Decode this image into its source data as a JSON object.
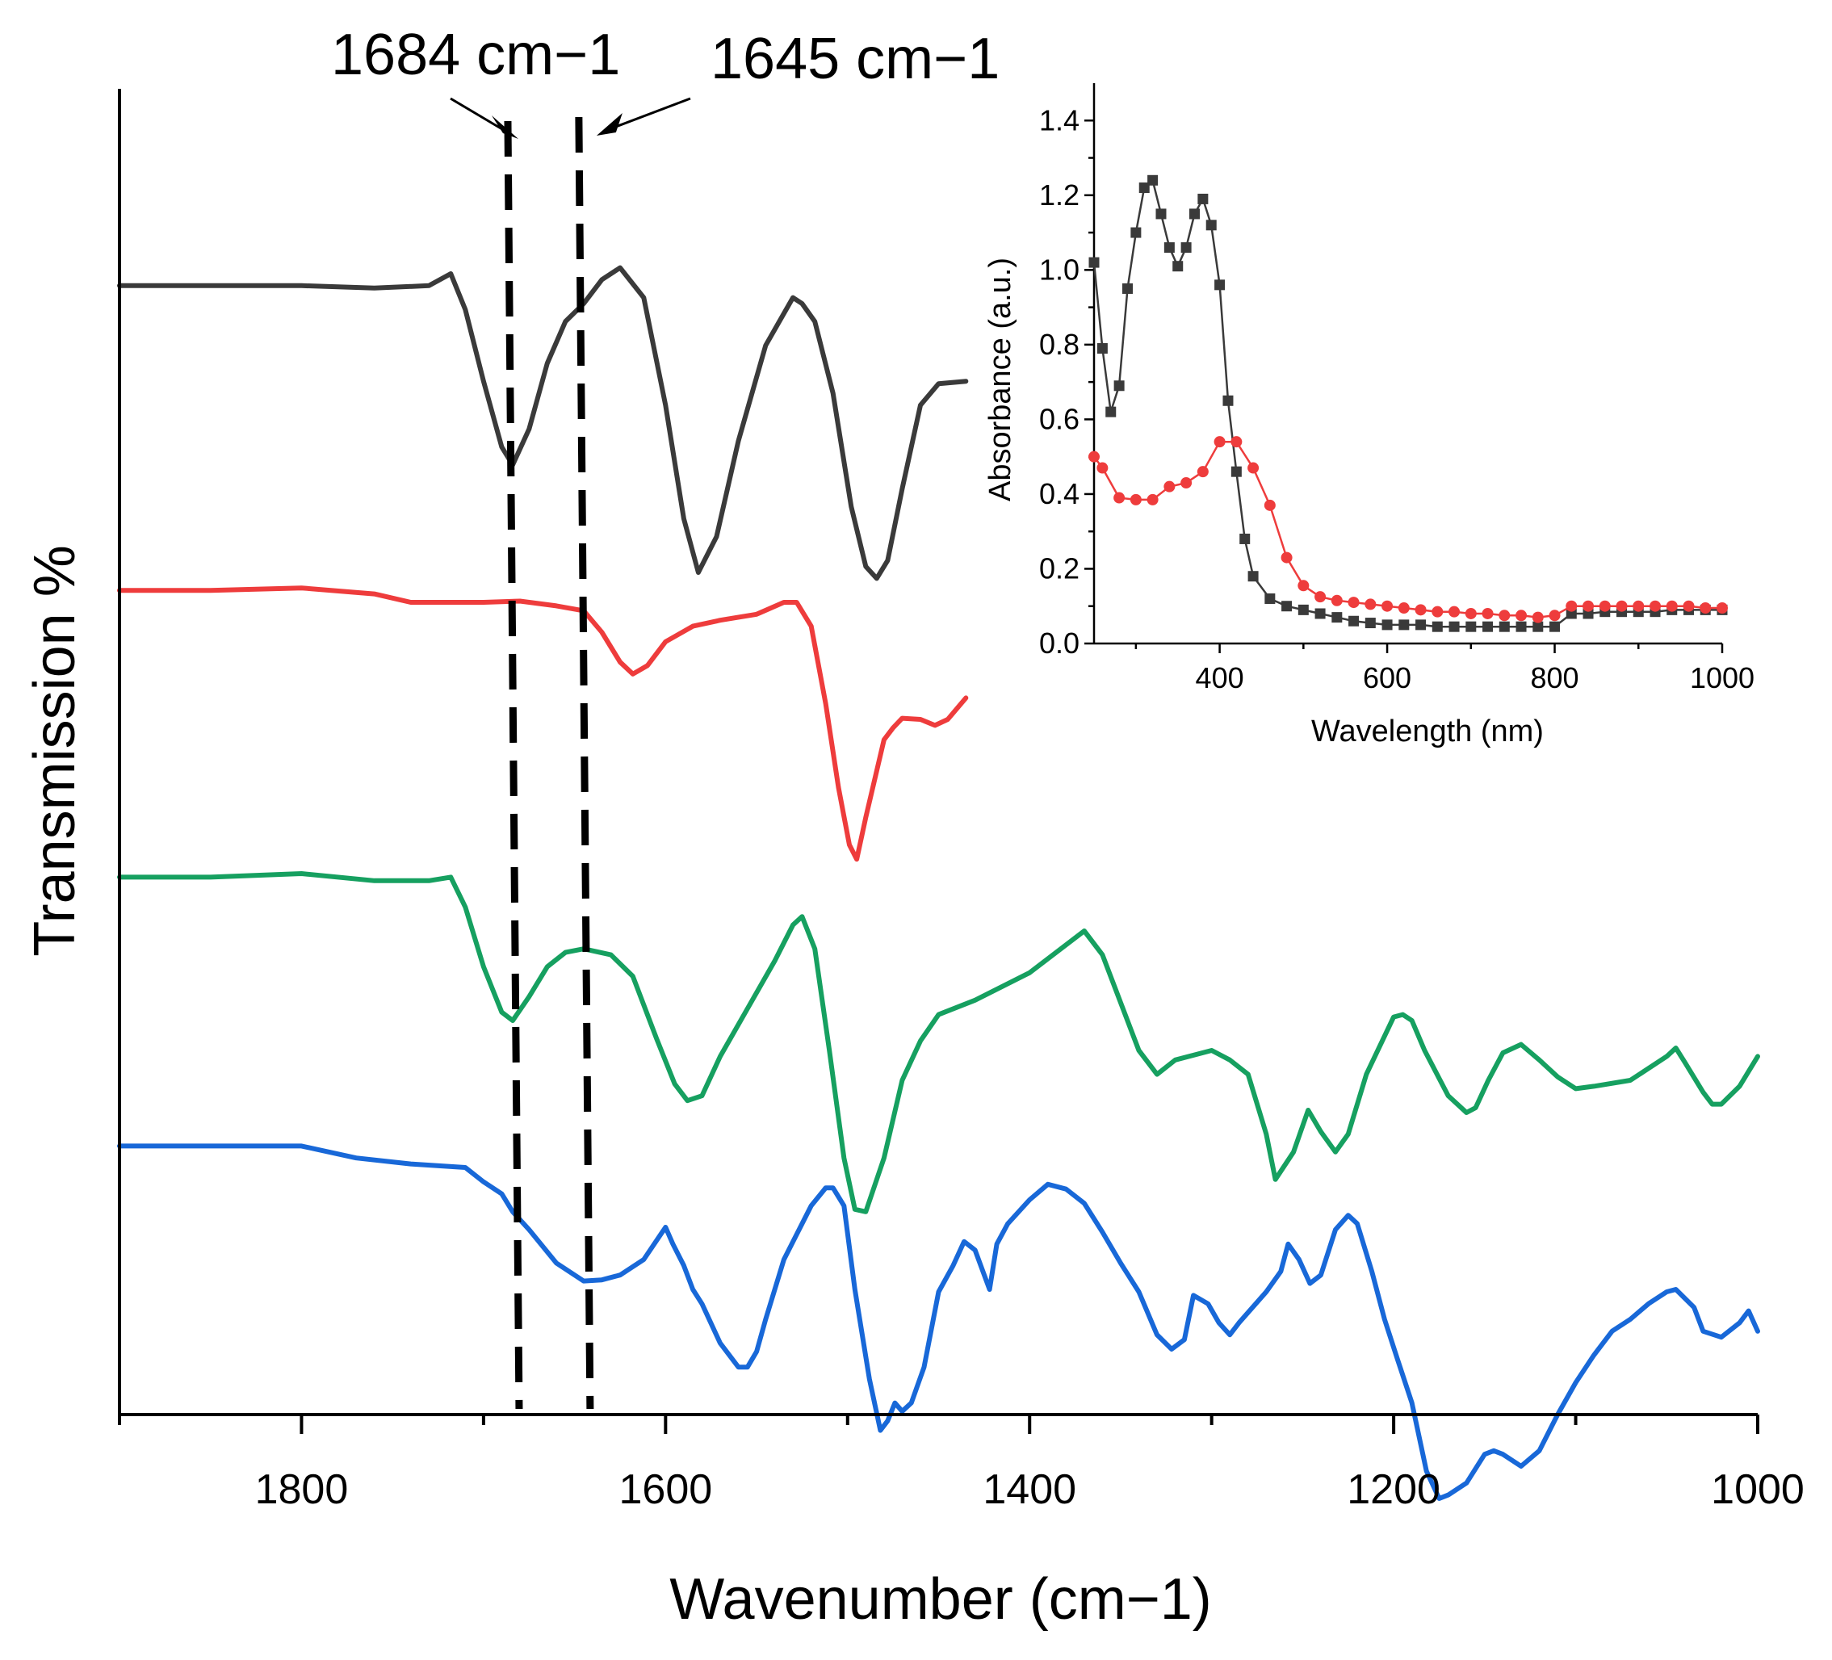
{
  "chart_data": [
    {
      "type": "line",
      "title": "",
      "xlabel": "Wavenumber (cm−1)",
      "ylabel": "Transmission %",
      "xlim": [
        1900,
        1000
      ],
      "x_reversed": true,
      "xticks": [
        1800,
        1600,
        1400,
        1200,
        1000
      ],
      "xtick_labels": [
        "1800",
        "1600",
        "1400",
        "1200",
        "1000"
      ],
      "y_units": "offset transmission (arbitrary)",
      "annotations": [
        {
          "text": "1684 cm−1",
          "x": 1684
        },
        {
          "text": "1645 cm−1",
          "x": 1645
        }
      ],
      "series": [
        {
          "name": "black",
          "color": "#3a3a3a",
          "x": [
            1900,
            1850,
            1800,
            1760,
            1730,
            1718,
            1710,
            1700,
            1690,
            1684,
            1675,
            1665,
            1655,
            1645,
            1635,
            1625,
            1612,
            1600,
            1590,
            1582,
            1572,
            1560,
            1545,
            1530,
            1525,
            1518,
            1508,
            1498,
            1490,
            1484,
            1478,
            1470,
            1460,
            1450,
            1435
          ],
          "y": [
            9.4,
            9.4,
            9.4,
            9.38,
            9.4,
            9.5,
            9.2,
            8.6,
            8.05,
            7.9,
            8.2,
            8.75,
            9.1,
            9.25,
            9.45,
            9.55,
            9.3,
            8.4,
            7.45,
            7.0,
            7.3,
            8.1,
            8.9,
            9.3,
            9.25,
            9.1,
            8.5,
            7.55,
            7.05,
            6.95,
            7.1,
            7.7,
            8.4,
            8.58,
            8.6
          ]
        },
        {
          "name": "red",
          "color": "#ee3c3c",
          "x": [
            1900,
            1850,
            1800,
            1760,
            1740,
            1700,
            1680,
            1660,
            1645,
            1635,
            1625,
            1618,
            1610,
            1600,
            1585,
            1570,
            1550,
            1535,
            1528,
            1520,
            1512,
            1505,
            1499,
            1495,
            1490,
            1480,
            1475,
            1470,
            1460,
            1452,
            1445,
            1435
          ],
          "y": [
            6.85,
            6.85,
            6.87,
            6.82,
            6.75,
            6.75,
            6.76,
            6.72,
            6.68,
            6.5,
            6.25,
            6.15,
            6.22,
            6.42,
            6.55,
            6.6,
            6.65,
            6.75,
            6.75,
            6.55,
            5.9,
            5.2,
            4.72,
            4.6,
            4.95,
            5.6,
            5.7,
            5.78,
            5.77,
            5.72,
            5.77,
            5.95
          ]
        },
        {
          "name": "green",
          "color": "#16a060",
          "x": [
            1900,
            1850,
            1800,
            1760,
            1730,
            1718,
            1710,
            1700,
            1690,
            1684,
            1675,
            1665,
            1655,
            1645,
            1630,
            1618,
            1605,
            1595,
            1588,
            1580,
            1570,
            1555,
            1540,
            1530,
            1525,
            1518,
            1510,
            1502,
            1496,
            1490,
            1480,
            1470,
            1460,
            1450,
            1430,
            1400,
            1370,
            1360,
            1340,
            1330,
            1320,
            1300,
            1290,
            1280,
            1270,
            1265,
            1255,
            1247,
            1240,
            1232,
            1225,
            1215,
            1200,
            1195,
            1190,
            1183,
            1170,
            1160,
            1155,
            1148,
            1140,
            1130,
            1120,
            1110,
            1100,
            1090,
            1070,
            1050,
            1045,
            1040,
            1030,
            1025,
            1020,
            1010,
            1000
          ],
          "y": [
            4.45,
            4.45,
            4.48,
            4.42,
            4.42,
            4.45,
            4.2,
            3.7,
            3.32,
            3.25,
            3.45,
            3.7,
            3.82,
            3.85,
            3.8,
            3.62,
            3.1,
            2.72,
            2.58,
            2.62,
            2.95,
            3.35,
            3.75,
            4.05,
            4.12,
            3.85,
            3.0,
            2.1,
            1.67,
            1.65,
            2.1,
            2.75,
            3.08,
            3.3,
            3.42,
            3.65,
            4.0,
            3.8,
            3.0,
            2.8,
            2.92,
            3.0,
            2.92,
            2.8,
            2.3,
            1.92,
            2.15,
            2.5,
            2.32,
            2.15,
            2.3,
            2.8,
            3.28,
            3.3,
            3.25,
            3.0,
            2.62,
            2.48,
            2.52,
            2.75,
            2.98,
            3.05,
            2.92,
            2.78,
            2.68,
            2.7,
            2.75,
            2.95,
            3.02,
            2.9,
            2.65,
            2.55,
            2.55,
            2.7,
            2.95
          ]
        },
        {
          "name": "blue",
          "color": "#1868d8",
          "x": [
            1900,
            1850,
            1800,
            1770,
            1740,
            1710,
            1700,
            1690,
            1684,
            1675,
            1660,
            1645,
            1635,
            1625,
            1612,
            1600,
            1596,
            1590,
            1585,
            1580,
            1570,
            1560,
            1555,
            1550,
            1545,
            1535,
            1520,
            1512,
            1508,
            1502,
            1496,
            1488,
            1482,
            1478,
            1474,
            1470,
            1465,
            1458,
            1450,
            1442,
            1436,
            1430,
            1422,
            1418,
            1412,
            1400,
            1390,
            1380,
            1370,
            1360,
            1350,
            1340,
            1330,
            1322,
            1315,
            1310,
            1302,
            1296,
            1290,
            1285,
            1270,
            1262,
            1258,
            1252,
            1246,
            1240,
            1232,
            1225,
            1220,
            1212,
            1205,
            1198,
            1190,
            1182,
            1175,
            1170,
            1160,
            1150,
            1145,
            1140,
            1130,
            1120,
            1110,
            1100,
            1090,
            1080,
            1070,
            1060,
            1050,
            1045,
            1035,
            1030,
            1020,
            1010,
            1005,
            1000
          ],
          "y": [
            2.2,
            2.2,
            2.2,
            2.1,
            2.05,
            2.02,
            1.9,
            1.8,
            1.65,
            1.5,
            1.22,
            1.07,
            1.08,
            1.12,
            1.25,
            1.52,
            1.38,
            1.2,
            1.0,
            0.88,
            0.55,
            0.35,
            0.35,
            0.48,
            0.75,
            1.25,
            1.7,
            1.85,
            1.85,
            1.7,
            1.0,
            0.25,
            -0.18,
            -0.1,
            0.05,
            -0.02,
            0.05,
            0.35,
            0.98,
            1.2,
            1.4,
            1.33,
            1.0,
            1.38,
            1.55,
            1.75,
            1.88,
            1.84,
            1.72,
            1.48,
            1.22,
            0.98,
            0.62,
            0.5,
            0.58,
            0.95,
            0.88,
            0.72,
            0.62,
            0.72,
            0.98,
            1.15,
            1.38,
            1.25,
            1.05,
            1.12,
            1.5,
            1.62,
            1.55,
            1.15,
            0.75,
            0.42,
            0.05,
            -0.52,
            -0.75,
            -0.72,
            -0.62,
            -0.38,
            -0.35,
            -0.38,
            -0.48,
            -0.35,
            -0.05,
            0.22,
            0.45,
            0.65,
            0.75,
            0.88,
            0.98,
            1.0,
            0.85,
            0.65,
            0.6,
            0.72,
            0.82,
            0.65
          ]
        }
      ]
    },
    {
      "type": "line",
      "title": "",
      "xlabel": "Wavelength (nm)",
      "ylabel": "Absorbance (a.u.)",
      "xlim": [
        250,
        1000
      ],
      "ylim": [
        0,
        1.5
      ],
      "xticks": [
        400,
        600,
        800,
        1000
      ],
      "xtick_labels": [
        "400",
        "600",
        "800",
        "1000"
      ],
      "yticks": [
        0.0,
        0.2,
        0.4,
        0.6,
        0.8,
        1.0,
        1.2,
        1.4
      ],
      "ytick_labels": [
        "0.0",
        "0.2",
        "0.4",
        "0.6",
        "0.8",
        "1.0",
        "1.2",
        "1.4"
      ],
      "series": [
        {
          "name": "black (squares)",
          "color": "#3a3a3a",
          "marker": "square",
          "x": [
            250,
            260,
            270,
            280,
            290,
            300,
            310,
            320,
            330,
            340,
            350,
            360,
            370,
            380,
            390,
            400,
            410,
            420,
            430,
            440,
            460,
            480,
            500,
            520,
            540,
            560,
            580,
            600,
            620,
            640,
            660,
            680,
            700,
            720,
            740,
            760,
            780,
            800,
            820,
            840,
            860,
            880,
            900,
            920,
            940,
            960,
            980,
            1000
          ],
          "y": [
            1.02,
            0.79,
            0.62,
            0.69,
            0.95,
            1.1,
            1.22,
            1.24,
            1.15,
            1.06,
            1.01,
            1.06,
            1.15,
            1.19,
            1.12,
            0.96,
            0.65,
            0.46,
            0.28,
            0.18,
            0.12,
            0.1,
            0.09,
            0.08,
            0.07,
            0.06,
            0.055,
            0.05,
            0.05,
            0.05,
            0.045,
            0.045,
            0.045,
            0.045,
            0.045,
            0.045,
            0.045,
            0.045,
            0.08,
            0.08,
            0.085,
            0.085,
            0.085,
            0.085,
            0.09,
            0.09,
            0.09,
            0.09
          ]
        },
        {
          "name": "red (circles)",
          "color": "#ee3c3c",
          "marker": "circle",
          "x": [
            250,
            260,
            280,
            300,
            320,
            340,
            360,
            380,
            400,
            420,
            440,
            460,
            480,
            500,
            520,
            540,
            560,
            580,
            600,
            620,
            640,
            660,
            680,
            700,
            720,
            740,
            760,
            780,
            800,
            820,
            840,
            860,
            880,
            900,
            920,
            940,
            960,
            980,
            1000
          ],
          "y": [
            0.5,
            0.47,
            0.39,
            0.385,
            0.385,
            0.42,
            0.43,
            0.46,
            0.54,
            0.54,
            0.47,
            0.37,
            0.23,
            0.155,
            0.125,
            0.115,
            0.11,
            0.105,
            0.1,
            0.095,
            0.09,
            0.085,
            0.085,
            0.08,
            0.08,
            0.075,
            0.075,
            0.07,
            0.075,
            0.1,
            0.1,
            0.1,
            0.1,
            0.1,
            0.1,
            0.1,
            0.1,
            0.095,
            0.095
          ]
        }
      ]
    }
  ]
}
